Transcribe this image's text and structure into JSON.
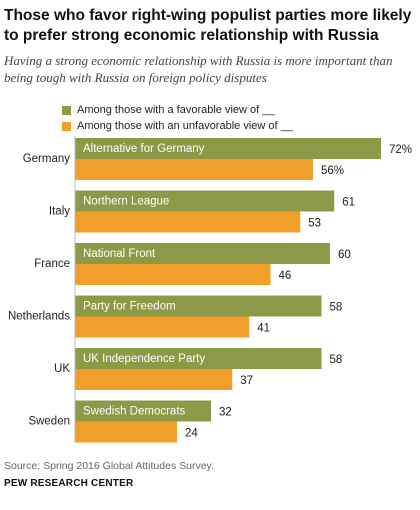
{
  "header": {
    "title": "Those who favor right-wing populist parties more likely to prefer strong economic relationship with Russia",
    "subtitle": "Having a strong economic relationship with Russia is more important than being tough with Russia on foreign policy disputes"
  },
  "footer": {
    "source": "Source: Spring 2016 Global Attitudes Survey.",
    "org": "PEW RESEARCH CENTER"
  },
  "colors": {
    "favorable": "#8c9a48",
    "unfavorable": "#f0a02a"
  },
  "chart_data": {
    "type": "bar",
    "orientation": "horizontal",
    "categories": [
      "Germany",
      "Italy",
      "France",
      "Netherlands",
      "UK",
      "Sweden"
    ],
    "party_labels": [
      "Alternative for Germany",
      "Northern League",
      "National Front",
      "Party for Freedom",
      "UK Independence Party",
      "Swedish Democrats"
    ],
    "series": [
      {
        "name": "Among those with a favorable view of __",
        "values": [
          72,
          61,
          60,
          58,
          58,
          32
        ],
        "value_labels": [
          "72%",
          "61",
          "60",
          "58",
          "58",
          "32"
        ]
      },
      {
        "name": "Among those with an unfavorable view of __",
        "values": [
          56,
          53,
          46,
          41,
          37,
          24
        ],
        "value_labels": [
          "56%",
          "53",
          "46",
          "41",
          "37",
          "24"
        ]
      }
    ],
    "xlim": [
      0,
      100
    ],
    "grid": false,
    "legend_position": "top-left"
  }
}
